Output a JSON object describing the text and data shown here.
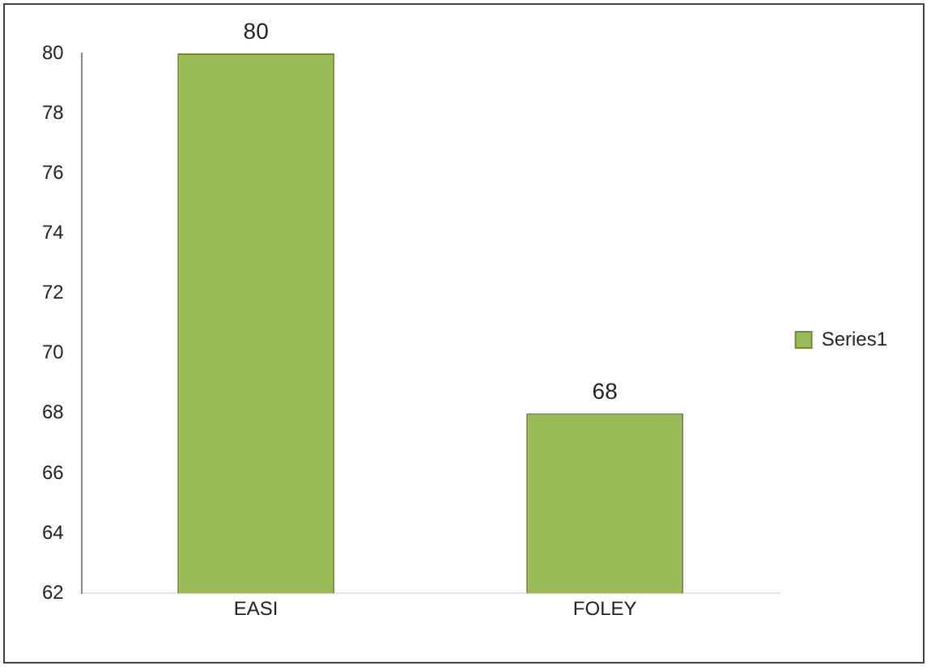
{
  "chart_data": {
    "type": "bar",
    "categories": [
      "EASI",
      "FOLEY"
    ],
    "series": [
      {
        "name": "Series1",
        "color": "#9bbb59",
        "values": [
          80,
          68
        ]
      }
    ],
    "ylim": [
      62,
      80
    ],
    "yticks": [
      62,
      64,
      66,
      68,
      70,
      72,
      74,
      76,
      78,
      80
    ],
    "grid": false,
    "legend": "right",
    "data_labels": true
  }
}
